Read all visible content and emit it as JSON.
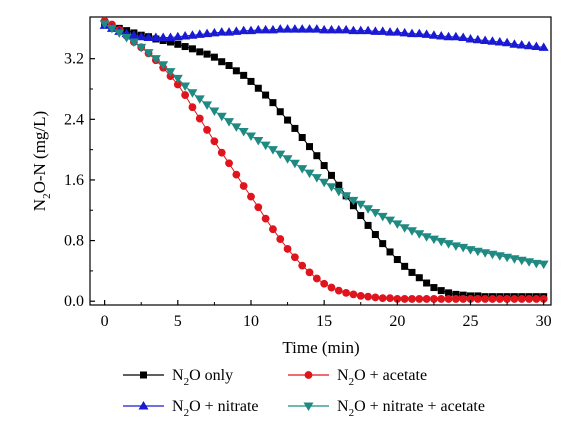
{
  "chart_data": {
    "type": "line",
    "xlabel": "Time (min)",
    "ylabel": {
      "base": "N",
      "sub": "2",
      "rest": "O-N (mg/L)"
    },
    "xlim": [
      -1,
      30.5
    ],
    "ylim": [
      -0.05,
      3.75
    ],
    "xticks": [
      "0",
      "5",
      "10",
      "15",
      "20",
      "25",
      "30"
    ],
    "yticks": [
      "0.0",
      "0.8",
      "1.6",
      "2.4",
      "3.2"
    ],
    "legend_position": "bottom",
    "series": [
      {
        "name": "N2O only",
        "label": {
          "base": "N",
          "sub": "2",
          "rest": "O only"
        },
        "color": "#000000",
        "marker": "square",
        "x": [
          0,
          0.5,
          1,
          1.5,
          2,
          2.5,
          3,
          3.5,
          4,
          4.5,
          5,
          5.5,
          6,
          6.5,
          7,
          7.5,
          8,
          8.5,
          9,
          9.5,
          10,
          10.5,
          11,
          11.5,
          12,
          12.5,
          13,
          13.5,
          14,
          14.5,
          15,
          15.5,
          16,
          16.5,
          17,
          17.5,
          18,
          18.5,
          19,
          19.5,
          20,
          20.5,
          21,
          21.5,
          22,
          22.5,
          23,
          23.5,
          24,
          24.5,
          25,
          25.5,
          26,
          26.5,
          27,
          27.5,
          28,
          28.5,
          29,
          29.5,
          30
        ],
        "y": [
          3.66,
          3.63,
          3.6,
          3.57,
          3.54,
          3.51,
          3.49,
          3.46,
          3.44,
          3.42,
          3.39,
          3.36,
          3.33,
          3.29,
          3.26,
          3.22,
          3.16,
          3.11,
          3.04,
          2.98,
          2.9,
          2.81,
          2.72,
          2.62,
          2.5,
          2.39,
          2.28,
          2.16,
          2.04,
          1.92,
          1.79,
          1.66,
          1.53,
          1.39,
          1.26,
          1.13,
          1,
          0.88,
          0.76,
          0.65,
          0.55,
          0.46,
          0.38,
          0.31,
          0.24,
          0.18,
          0.14,
          0.11,
          0.09,
          0.08,
          0.07,
          0.07,
          0.06,
          0.06,
          0.06,
          0.06,
          0.06,
          0.06,
          0.06,
          0.06,
          0.06
        ]
      },
      {
        "name": "N2O + acetate",
        "label": {
          "base": "N",
          "sub": "2",
          "rest": "O + acetate"
        },
        "color": "#e0141c",
        "marker": "circle",
        "x": [
          0,
          0.5,
          1,
          1.5,
          2,
          2.5,
          3,
          3.5,
          4,
          4.5,
          5,
          5.5,
          6,
          6.5,
          7,
          7.5,
          8,
          8.5,
          9,
          9.5,
          10,
          10.5,
          11,
          11.5,
          12,
          12.5,
          13,
          13.5,
          14,
          14.5,
          15,
          15.5,
          16,
          16.5,
          17,
          17.5,
          18,
          18.5,
          19,
          19.5,
          20,
          20.5,
          21,
          21.5,
          22,
          22.5,
          23,
          23.5,
          24,
          24.5,
          25,
          25.5,
          26,
          26.5,
          27,
          27.5,
          28,
          28.5,
          29,
          29.5,
          30
        ],
        "y": [
          3.7,
          3.65,
          3.58,
          3.5,
          3.42,
          3.35,
          3.27,
          3.18,
          3.08,
          2.97,
          2.86,
          2.72,
          2.56,
          2.41,
          2.26,
          2.11,
          1.96,
          1.82,
          1.67,
          1.52,
          1.38,
          1.24,
          1.09,
          0.95,
          0.82,
          0.69,
          0.58,
          0.47,
          0.38,
          0.3,
          0.23,
          0.18,
          0.14,
          0.11,
          0.09,
          0.07,
          0.06,
          0.05,
          0.04,
          0.04,
          0.03,
          0.03,
          0.03,
          0.03,
          0.03,
          0.03,
          0.03,
          0.03,
          0.03,
          0.03,
          0.03,
          0.03,
          0.03,
          0.03,
          0.03,
          0.03,
          0.03,
          0.03,
          0.03,
          0.03,
          0.03
        ]
      },
      {
        "name": "N2O + nitrate",
        "label": {
          "base": "N",
          "sub": "2",
          "rest": "O + nitrate"
        },
        "color": "#1a1ad4",
        "marker": "triangle-up",
        "x": [
          0,
          0.5,
          1,
          1.5,
          2,
          2.5,
          3,
          3.5,
          4,
          4.5,
          5,
          5.5,
          6,
          6.5,
          7,
          7.5,
          8,
          8.5,
          9,
          9.5,
          10,
          10.5,
          11,
          11.5,
          12,
          12.5,
          13,
          13.5,
          14,
          14.5,
          15,
          15.5,
          16,
          16.5,
          17,
          17.5,
          18,
          18.5,
          19,
          19.5,
          20,
          20.5,
          21,
          21.5,
          22,
          22.5,
          23,
          23.5,
          24,
          24.5,
          25,
          25.5,
          26,
          26.5,
          27,
          27.5,
          28,
          28.5,
          29,
          29.5,
          30
        ],
        "y": [
          3.64,
          3.6,
          3.56,
          3.53,
          3.51,
          3.49,
          3.48,
          3.48,
          3.48,
          3.48,
          3.49,
          3.5,
          3.51,
          3.52,
          3.53,
          3.54,
          3.55,
          3.55,
          3.56,
          3.57,
          3.57,
          3.58,
          3.58,
          3.58,
          3.59,
          3.59,
          3.59,
          3.59,
          3.59,
          3.59,
          3.58,
          3.58,
          3.58,
          3.58,
          3.57,
          3.57,
          3.57,
          3.56,
          3.56,
          3.55,
          3.55,
          3.54,
          3.53,
          3.53,
          3.52,
          3.51,
          3.5,
          3.49,
          3.49,
          3.48,
          3.46,
          3.45,
          3.44,
          3.43,
          3.42,
          3.41,
          3.39,
          3.38,
          3.37,
          3.36,
          3.35
        ]
      },
      {
        "name": "N2O + nitrate + acetate",
        "label": {
          "base": "N",
          "sub": "2",
          "rest": "O + nitrate + acetate"
        },
        "color": "#1f8a82",
        "marker": "triangle-down",
        "x": [
          0,
          0.5,
          1,
          1.5,
          2,
          2.5,
          3,
          3.5,
          4,
          4.5,
          5,
          5.5,
          6,
          6.5,
          7,
          7.5,
          8,
          8.5,
          9,
          9.5,
          10,
          10.5,
          11,
          11.5,
          12,
          12.5,
          13,
          13.5,
          14,
          14.5,
          15,
          15.5,
          16,
          16.5,
          17,
          17.5,
          18,
          18.5,
          19,
          19.5,
          20,
          20.5,
          21,
          21.5,
          22,
          22.5,
          23,
          23.5,
          24,
          24.5,
          25,
          25.5,
          26,
          26.5,
          27,
          27.5,
          28,
          28.5,
          29,
          29.5,
          30
        ],
        "y": [
          3.66,
          3.6,
          3.54,
          3.48,
          3.42,
          3.35,
          3.28,
          3.2,
          3.12,
          3.03,
          2.94,
          2.84,
          2.75,
          2.67,
          2.59,
          2.51,
          2.44,
          2.37,
          2.3,
          2.24,
          2.18,
          2.12,
          2.06,
          2,
          1.94,
          1.88,
          1.82,
          1.75,
          1.69,
          1.63,
          1.57,
          1.51,
          1.45,
          1.39,
          1.33,
          1.28,
          1.22,
          1.17,
          1.12,
          1.07,
          1.02,
          0.97,
          0.93,
          0.89,
          0.85,
          0.82,
          0.79,
          0.76,
          0.73,
          0.71,
          0.68,
          0.66,
          0.64,
          0.62,
          0.6,
          0.58,
          0.56,
          0.54,
          0.52,
          0.5,
          0.49
        ]
      }
    ]
  }
}
